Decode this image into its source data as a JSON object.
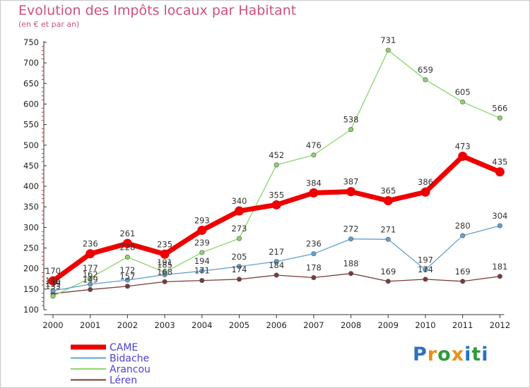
{
  "header": {
    "title": "Evolution des Impôts locaux par Habitant",
    "subtitle": "(en € et par an)"
  },
  "logo": {
    "text": "Proxiti",
    "letter_colors": [
      "#2f6fc2",
      "#e8901a",
      "#2f9c3a",
      "#e8901a",
      "#1a76c9",
      "#2f9c3a",
      "#2f6fc2"
    ]
  },
  "chart_data": {
    "type": "line",
    "title": "Evolution des Impôts locaux par Habitant",
    "subtitle": "(en € et par an)",
    "x": [
      "2000",
      "2001",
      "2002",
      "2003",
      "2004",
      "2005",
      "2006",
      "2007",
      "2008",
      "2009",
      "2010",
      "2011",
      "2012"
    ],
    "ylim": [
      100,
      750
    ],
    "yticks": [
      100,
      150,
      200,
      250,
      300,
      350,
      400,
      450,
      500,
      550,
      600,
      650,
      700,
      750
    ],
    "grid": false,
    "legend_position": "bottom-left",
    "series": [
      {
        "name": "CAME",
        "color": "#ee0000",
        "values": [
          170,
          236,
          261,
          235,
          293,
          340,
          355,
          384,
          387,
          365,
          386,
          473,
          435
        ]
      },
      {
        "name": "Bidache",
        "color": "#5fa0d0",
        "values": [
          146,
          162,
          172,
          185,
          194,
          205,
          217,
          236,
          272,
          271,
          197,
          280,
          304
        ]
      },
      {
        "name": "Arancou",
        "color": "#8dd46a",
        "values": [
          133,
          177,
          228,
          191,
          239,
          273,
          452,
          476,
          538,
          731,
          659,
          605,
          566
        ]
      },
      {
        "name": "Léren",
        "color": "#7a3a3a",
        "values": [
          139,
          149,
          157,
          168,
          171,
          174,
          184,
          178,
          188,
          169,
          174,
          169,
          181
        ]
      }
    ]
  }
}
